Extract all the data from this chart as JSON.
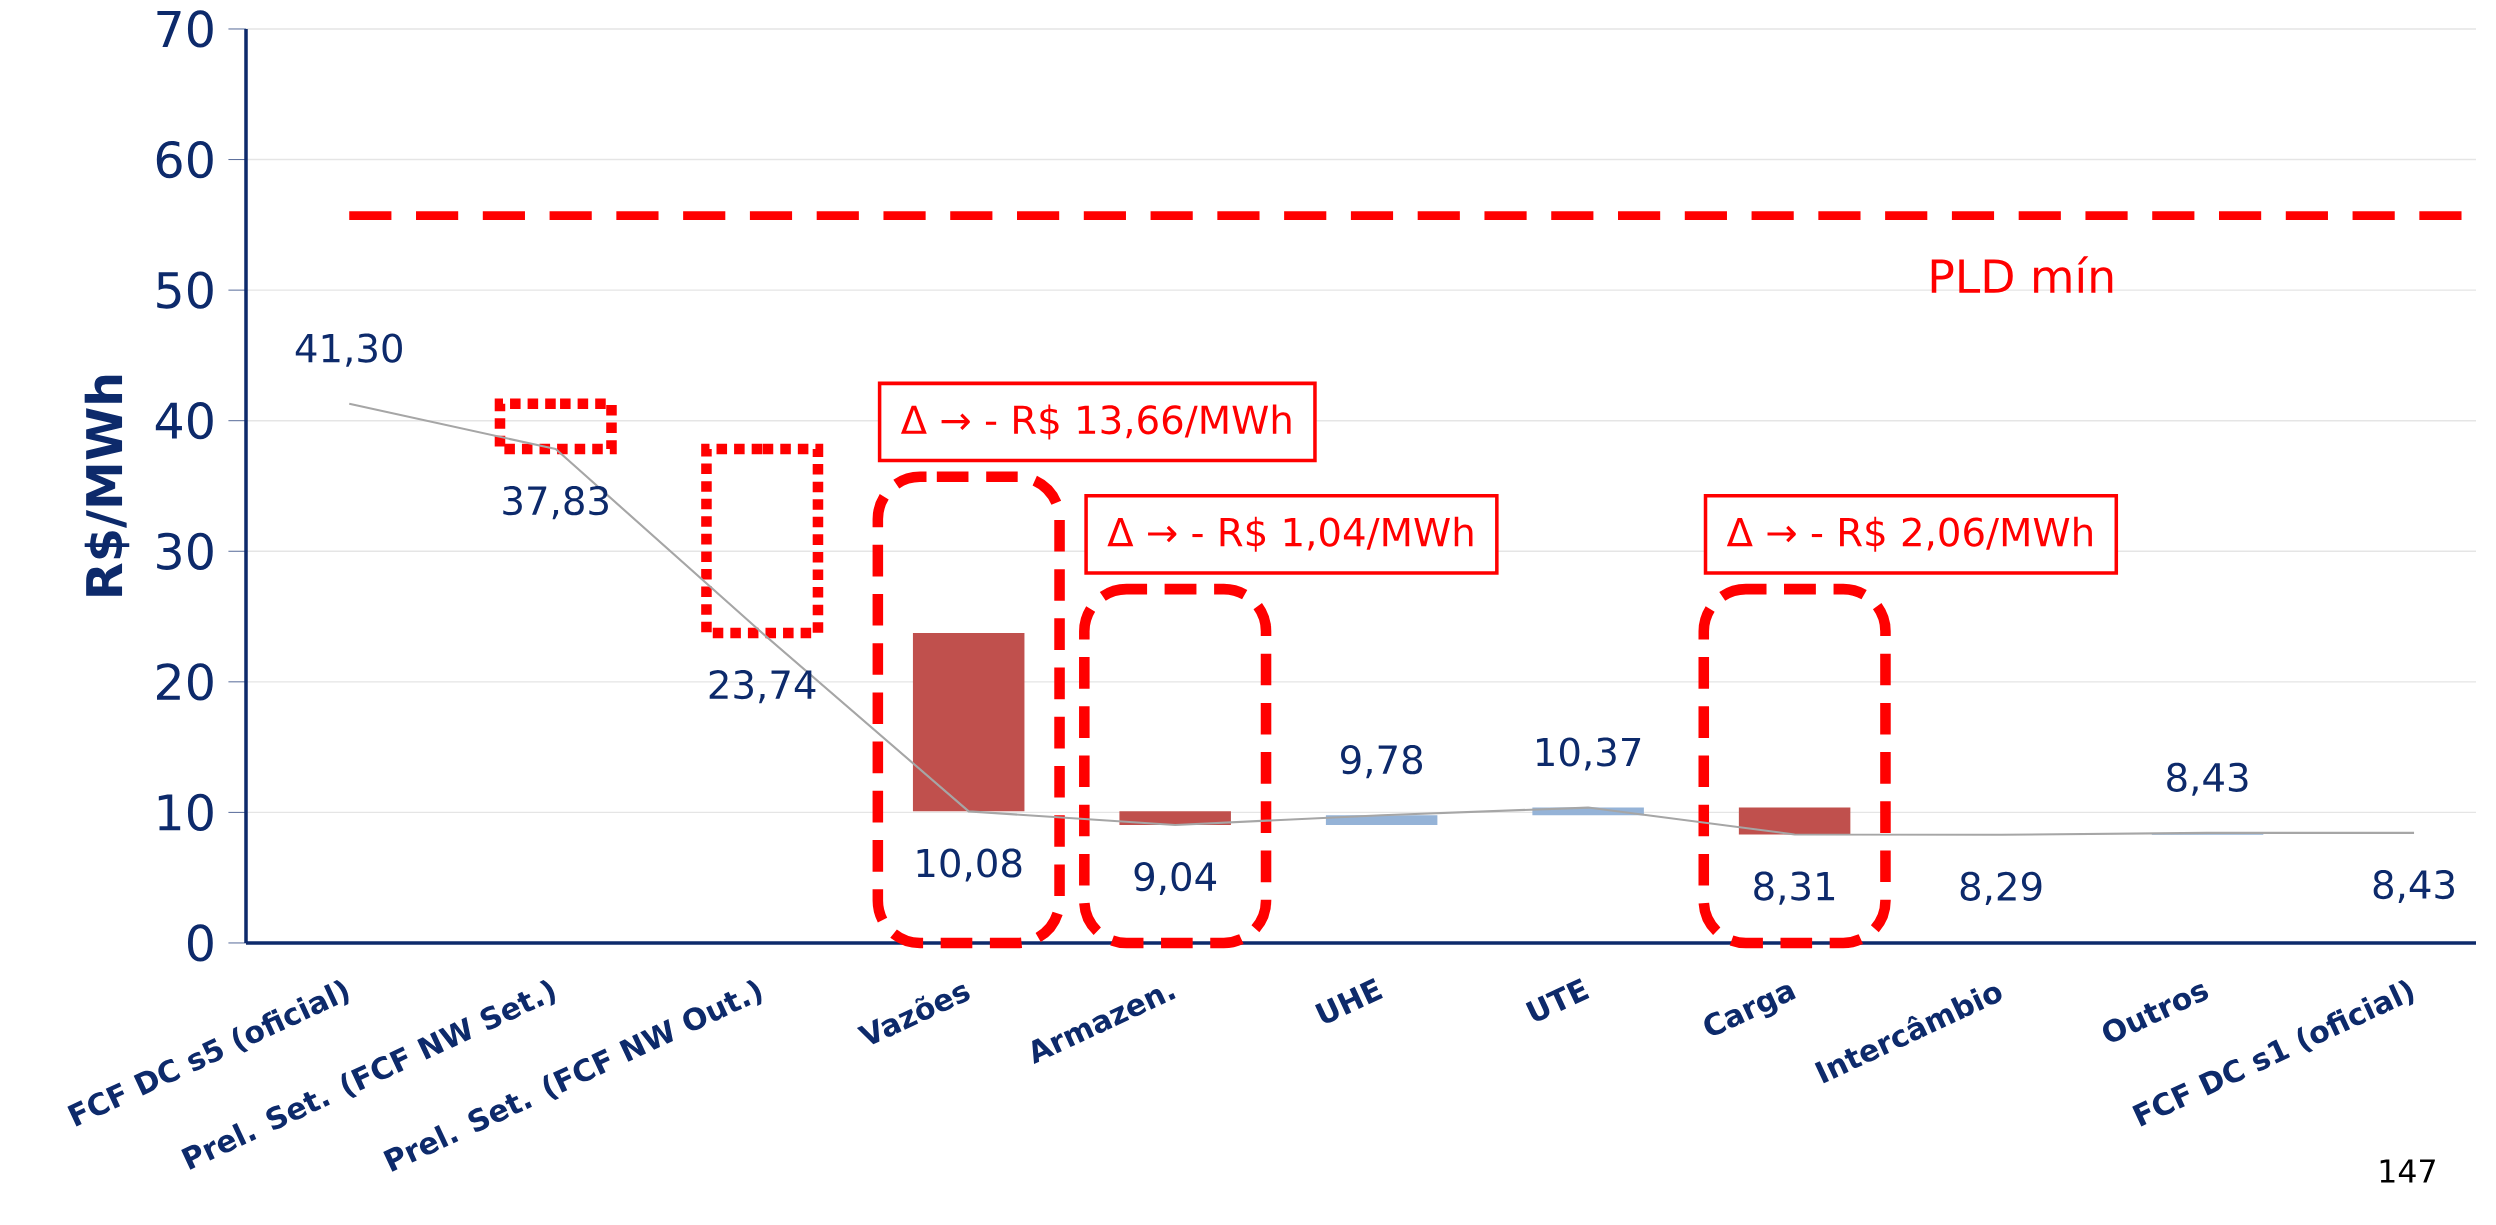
{
  "chart_data": {
    "type": "bar",
    "ylabel": "R$/MWh",
    "ylim": [
      0,
      70
    ],
    "yticks": [
      0,
      10,
      20,
      30,
      40,
      50,
      60,
      70
    ],
    "grid": "y",
    "categories": [
      "FCF DC s5 (oficial)",
      "Prel. Set. (FCF NW Set.)",
      "Prel. Set. (FCF NW Out.)",
      "Vazões",
      "Armazen.",
      "UHE",
      "UTE",
      "Carga",
      "Intercâmbio",
      "Outros",
      "FCF DC s1 (oficial)"
    ],
    "series": [
      {
        "line_style": "dotted",
        "color": "#ff0000",
        "base": [
          null,
          37.83,
          23.74,
          null,
          null,
          null,
          null,
          null,
          null,
          null,
          null
        ],
        "values": [
          null,
          3.47,
          14.09,
          null,
          null,
          null,
          null,
          null,
          null,
          null,
          null
        ]
      },
      {
        "line_style": "dashed",
        "color": "#ff0000",
        "base": [
          null,
          null,
          null,
          0,
          0,
          null,
          null,
          0,
          null,
          null,
          null
        ],
        "values": [
          null,
          null,
          null,
          35.7,
          27.1,
          null,
          null,
          27.1,
          null,
          null,
          null
        ]
      },
      {
        "colors": [
          null,
          null,
          null,
          "#c0504d",
          "#c0504d",
          "#95b3d7",
          "#95b3d7",
          "#c0504d",
          "#c0504d",
          "#95b3d7",
          null
        ],
        "base": [
          null,
          null,
          null,
          10.08,
          9.04,
          9.04,
          9.78,
          8.31,
          8.29,
          8.29,
          null
        ],
        "values": [
          null,
          null,
          null,
          13.66,
          1.04,
          0.74,
          0.59,
          2.06,
          0.02,
          0.14,
          null
        ]
      },
      {
        "type": "line",
        "color": "#a6a6a6",
        "values": [
          41.3,
          37.83,
          23.74,
          10.08,
          9.04,
          9.78,
          10.37,
          8.31,
          8.29,
          8.43,
          8.43
        ],
        "value_labels": [
          "41,30",
          "37,83",
          "23,74",
          "10,08",
          "9,04",
          "9,78",
          "10,37",
          "8,31",
          "8,29",
          "8,43",
          "8,43"
        ]
      }
    ],
    "ref_lines": [
      {
        "axis": "y",
        "value": 55.7,
        "label": "PLD mín",
        "color": "#ff0000",
        "line_style": "dashed"
      }
    ],
    "annotations": [
      "Δ → - R$ 13,66/MWh",
      "Δ → - R$ 1,04/MWh",
      "Δ → - R$ 2,06/MWh",
      "147"
    ]
  }
}
